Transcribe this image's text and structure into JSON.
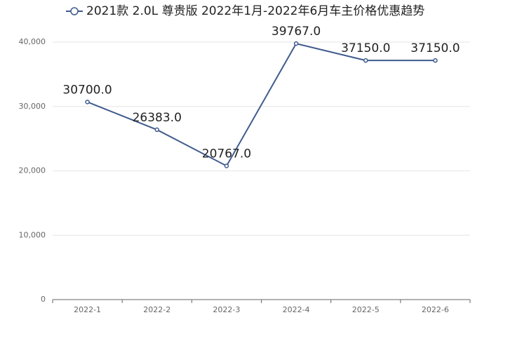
{
  "chart_data": {
    "type": "line",
    "categories": [
      "2022-1",
      "2022-2",
      "2022-3",
      "2022-4",
      "2022-5",
      "2022-6"
    ],
    "series": [
      {
        "name": "2021款 2.0L 尊贵版 2022年1月-2022年6月车主价格优惠趋势",
        "color": "#3f5b8c",
        "values": [
          30700,
          26383,
          20767,
          39767,
          37150,
          37150
        ],
        "value_labels": [
          "30700.0",
          "26383.0",
          "20767.0",
          "39767.0",
          "37150.0",
          "37150.0"
        ]
      }
    ],
    "ylim": [
      0,
      40000
    ],
    "yticks": [
      0,
      {
        "value": 10000,
        "label": "10,000"
      },
      {
        "value": 20000,
        "label": "20,000"
      },
      {
        "value": 30000,
        "label": "30,000"
      },
      {
        "value": 40000,
        "label": "40,000"
      }
    ],
    "grid": true,
    "legend": "top"
  }
}
